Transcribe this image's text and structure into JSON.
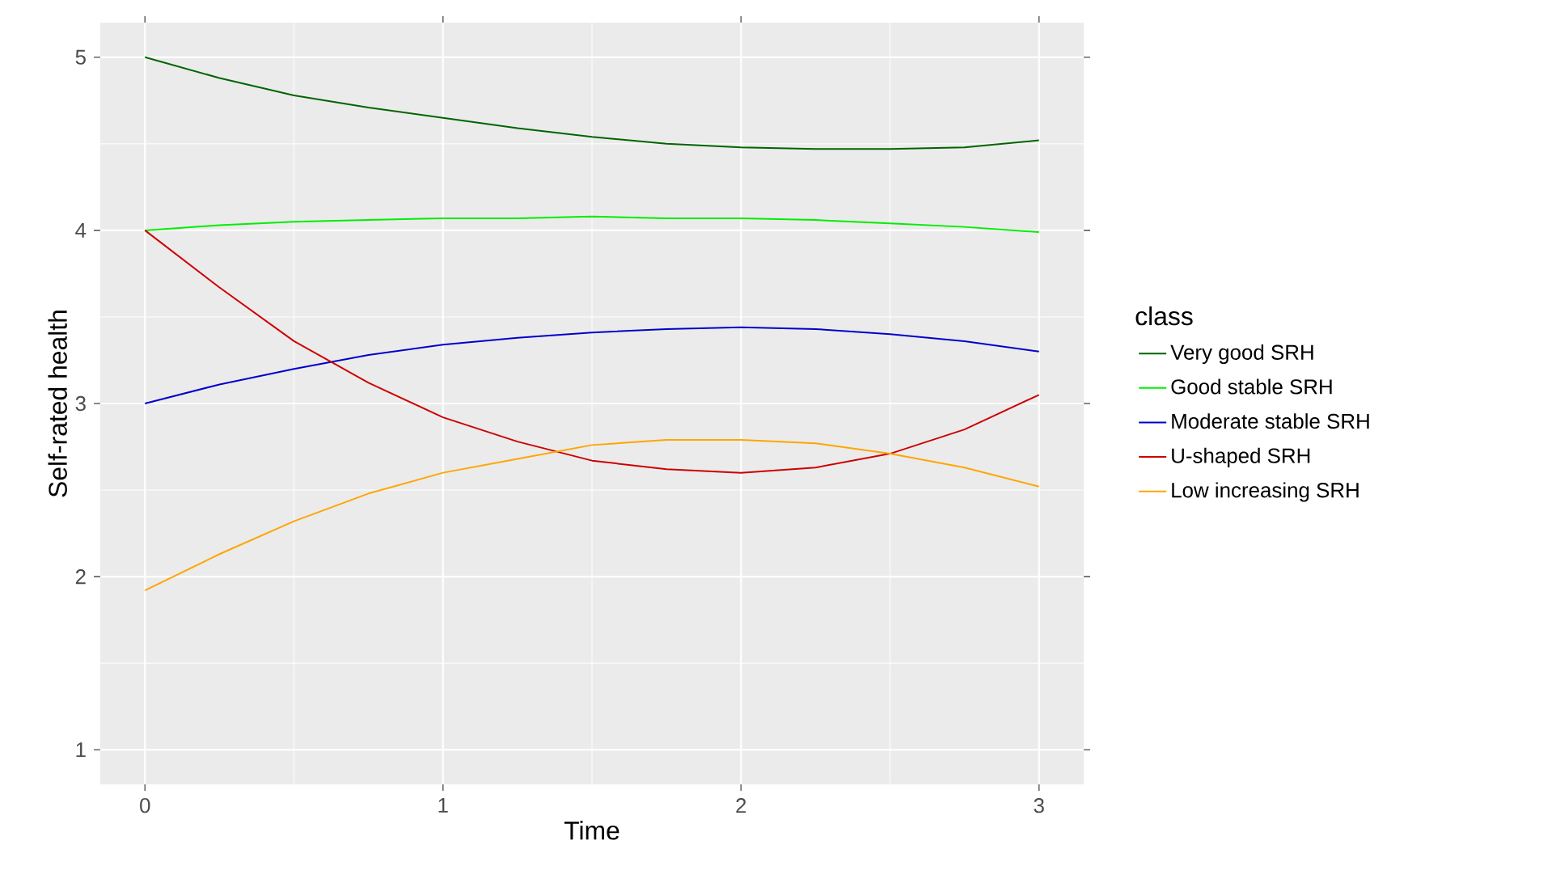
{
  "chart_data": {
    "type": "line",
    "xlabel": "Time",
    "ylabel": "Self-rated health",
    "legend_title": "class",
    "x": [
      0,
      0.25,
      0.5,
      0.75,
      1,
      1.25,
      1.5,
      1.75,
      2,
      2.25,
      2.5,
      2.75,
      3
    ],
    "series": [
      {
        "name": "Very good SRH",
        "color": "#006400",
        "values": [
          5.0,
          4.88,
          4.78,
          4.71,
          4.65,
          4.59,
          4.54,
          4.5,
          4.48,
          4.47,
          4.47,
          4.48,
          4.52
        ]
      },
      {
        "name": "Good stable SRH",
        "color": "#00ee00",
        "values": [
          4.0,
          4.03,
          4.05,
          4.06,
          4.07,
          4.07,
          4.08,
          4.07,
          4.07,
          4.06,
          4.04,
          4.02,
          3.99
        ]
      },
      {
        "name": "Moderate stable SRH",
        "color": "#0000cd",
        "values": [
          3.0,
          3.11,
          3.2,
          3.28,
          3.34,
          3.38,
          3.41,
          3.43,
          3.44,
          3.43,
          3.4,
          3.36,
          3.3
        ]
      },
      {
        "name": "U-shaped SRH",
        "color": "#cd0000",
        "values": [
          4.0,
          3.67,
          3.36,
          3.12,
          2.92,
          2.78,
          2.67,
          2.62,
          2.6,
          2.63,
          2.71,
          2.85,
          3.05
        ]
      },
      {
        "name": "Low increasing SRH",
        "color": "#ffa500",
        "values": [
          1.92,
          2.13,
          2.32,
          2.48,
          2.6,
          2.68,
          2.76,
          2.79,
          2.79,
          2.77,
          2.71,
          2.63,
          2.52
        ]
      }
    ],
    "xlim": [
      -0.15,
      3.15
    ],
    "ylim": [
      0.8,
      5.2
    ],
    "xticks": [
      0,
      1,
      2,
      3
    ],
    "yticks": [
      1,
      2,
      3,
      4,
      5
    ],
    "grid": true,
    "legend": "right",
    "marker": "none",
    "line_style": "solid"
  }
}
